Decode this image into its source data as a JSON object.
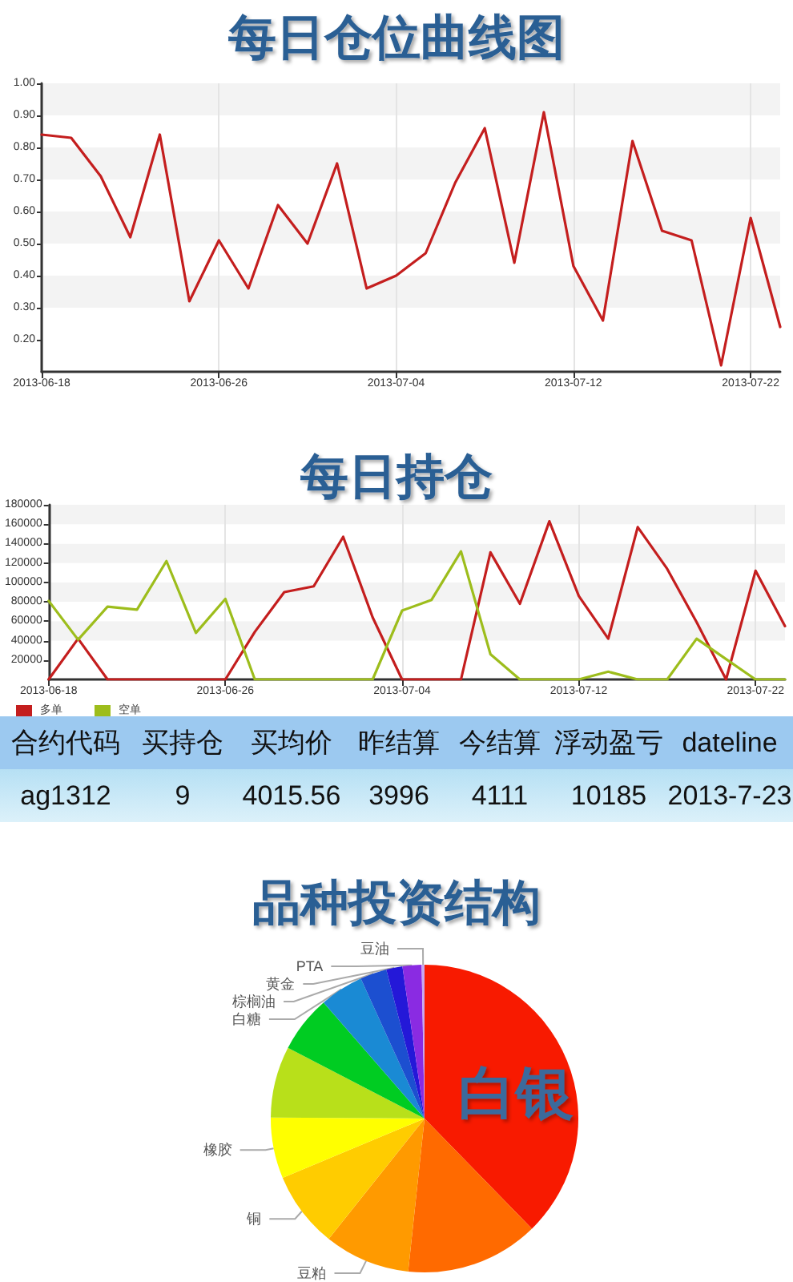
{
  "chart_data": [
    {
      "type": "line",
      "title": "每日仓位曲线图",
      "categories": [
        "2013-06-18",
        null,
        null,
        null,
        null,
        null,
        "2013-06-26",
        null,
        null,
        null,
        null,
        null,
        "2013-07-04",
        null,
        null,
        null,
        null,
        null,
        "2013-07-12",
        null,
        null,
        null,
        null,
        null,
        "2013-07-22",
        null
      ],
      "series": [
        {
          "color": "#c41e1e",
          "values": [
            0.84,
            0.83,
            0.71,
            0.52,
            0.84,
            0.32,
            0.51,
            0.36,
            0.62,
            0.5,
            0.75,
            0.36,
            0.4,
            0.47,
            0.69,
            0.86,
            0.44,
            0.91,
            0.43,
            0.26,
            0.82,
            0.54,
            0.51,
            0.12,
            0.58,
            0.24
          ]
        }
      ],
      "ylim": [
        0.1,
        1.0
      ],
      "yticks": [
        {
          "value": 0.2,
          "label": "0.20"
        },
        {
          "value": 0.3,
          "label": "0.30"
        },
        {
          "value": 0.4,
          "label": "0.40"
        },
        {
          "value": 0.5,
          "label": "0.50"
        },
        {
          "value": 0.6,
          "label": "0.60"
        },
        {
          "value": 0.7,
          "label": "0.70"
        },
        {
          "value": 0.8,
          "label": "0.80"
        },
        {
          "value": 0.9,
          "label": "0.90"
        },
        {
          "value": 1.0,
          "label": "1.00"
        }
      ],
      "grid": true,
      "marker": "none",
      "line_style": "solid"
    },
    {
      "type": "line",
      "title": "每日持仓",
      "categories": [
        "2013-06-18",
        null,
        null,
        null,
        null,
        null,
        "2013-06-26",
        null,
        null,
        null,
        null,
        null,
        "2013-07-04",
        null,
        null,
        null,
        null,
        null,
        "2013-07-12",
        null,
        null,
        null,
        null,
        null,
        "2013-07-22",
        null
      ],
      "series": [
        {
          "name": "多单",
          "color": "#c41e1e",
          "values": [
            0,
            42000,
            0,
            0,
            0,
            0,
            0,
            49000,
            90000,
            96000,
            147000,
            64000,
            0,
            0,
            0,
            131000,
            78000,
            163000,
            86000,
            42000,
            157000,
            114000,
            59000,
            0,
            112000,
            55000
          ]
        },
        {
          "name": "空单",
          "color": "#9dbd1c",
          "values": [
            81000,
            41000,
            75000,
            72000,
            122000,
            48000,
            83000,
            0,
            0,
            0,
            0,
            0,
            71000,
            82000,
            132000,
            26000,
            0,
            0,
            0,
            8000,
            0,
            0,
            42000,
            21000,
            0,
            0
          ]
        }
      ],
      "ylim": [
        0,
        180000
      ],
      "yticks": [
        20000,
        40000,
        60000,
        80000,
        100000,
        120000,
        140000,
        160000,
        180000
      ],
      "grid": true,
      "marker": "none",
      "line_style": "solid",
      "legend": "bottom left"
    },
    {
      "type": "other",
      "categories": [
        "合约代码",
        "买持仓",
        "买均价",
        "昨结算",
        "今结算",
        "浮动盈亏",
        "dateline"
      ],
      "annotations": [
        "ag1312",
        "9",
        "4015.56",
        "3996",
        "4111",
        "10185",
        "2013-7-23"
      ]
    },
    {
      "type": "pie",
      "title": "品种投资结构",
      "categories": [
        "白银",
        null,
        "豆粕",
        "铜",
        "橡胶",
        null,
        null,
        "白糖",
        "棕榈油",
        "黄金",
        "PTA",
        "豆油"
      ],
      "values": [
        37.7,
        14,
        9,
        8,
        6.4,
        7.5,
        6,
        4.6,
        2.8,
        1.7,
        2,
        0.3
      ],
      "colors": [
        "#f81a00",
        "#ff6a00",
        "#ff9a00",
        "#ffcc00",
        "#ffff00",
        "#b8e01a",
        "#00cc22",
        "#1a8ad4",
        "#1c4fd0",
        "#2418d8",
        "#8a2be2",
        "#c8a8f0"
      ]
    }
  ]
}
